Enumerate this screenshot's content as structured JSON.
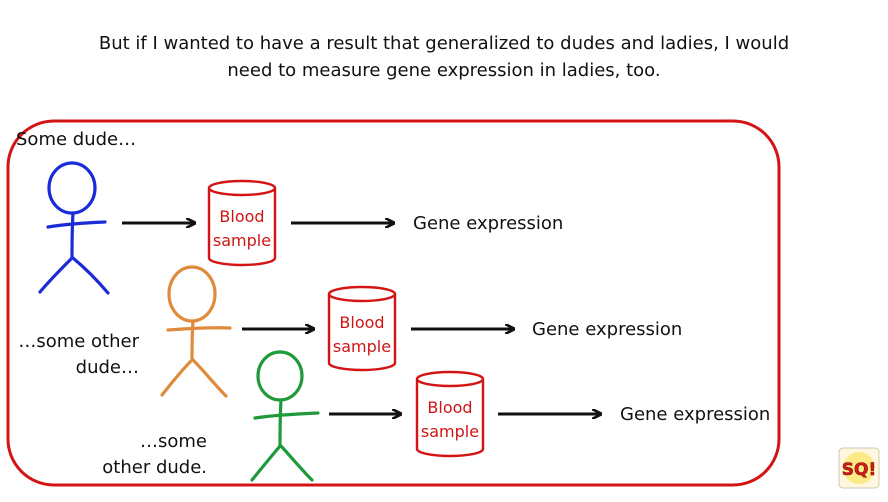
{
  "heading": {
    "line1": "But if I wanted to have a result that generalized to dudes and ladies, I would",
    "line2": "need to measure gene expression in ladies, too."
  },
  "labels": {
    "dude1": "Some dude…",
    "dude2_line1": "…some other",
    "dude2_line2": "dude…",
    "dude3_line1": "…some",
    "dude3_line2": "other dude."
  },
  "sample_label_line1": "Blood",
  "sample_label_line2": "sample",
  "output_label": "Gene expression",
  "colors": {
    "frame": "#d41414",
    "figure1": "#1a2bd8",
    "figure2": "#e08a3c",
    "figure3": "#1f9a3a",
    "cylinder": "#d41414"
  },
  "logo_text": "SQ!"
}
